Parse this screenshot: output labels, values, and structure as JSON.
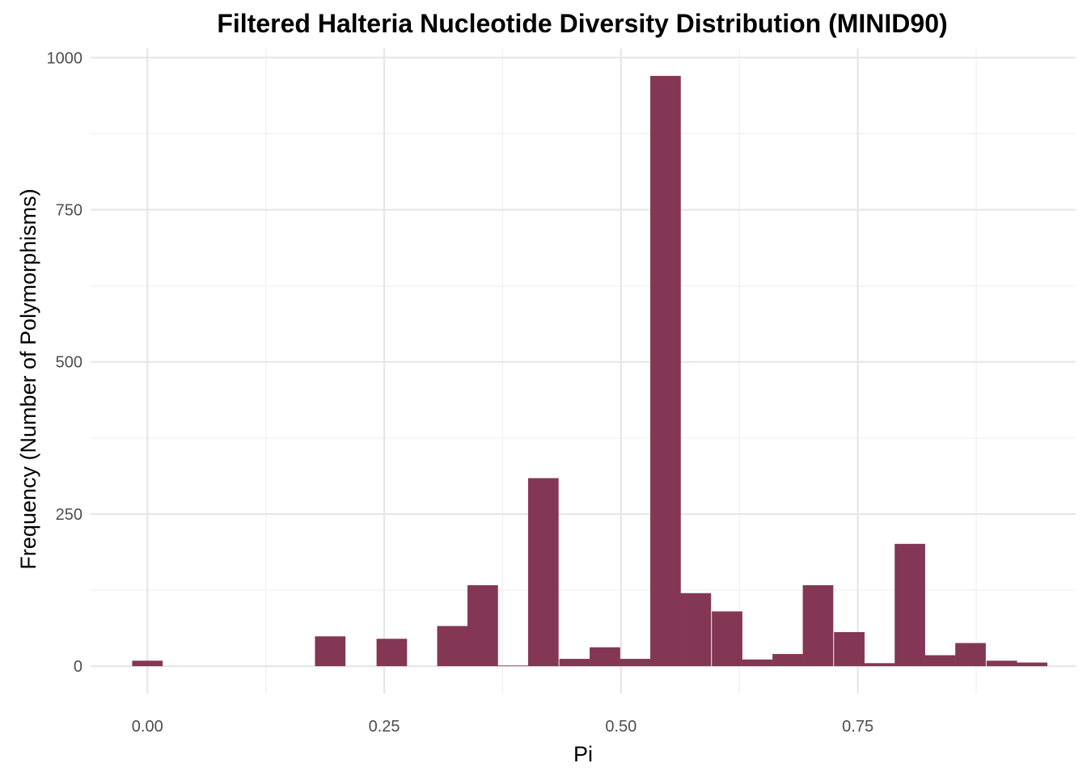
{
  "chart_data": {
    "type": "bar",
    "title": "Filtered Halteria Nucleotide Diversity Distribution (MINID90)",
    "xlabel": "Pi",
    "ylabel": "Frequency (Number of Polymorphisms)",
    "xlim": [
      -0.06,
      0.98
    ],
    "ylim": [
      -45,
      1015
    ],
    "x_ticks": [
      0.0,
      0.25,
      0.5,
      0.75
    ],
    "x_tick_labels": [
      "0.00",
      "0.25",
      "0.50",
      "0.75"
    ],
    "y_ticks": [
      0,
      250,
      500,
      750,
      1000
    ],
    "y_tick_labels": [
      "0",
      "250",
      "500",
      "750",
      "1000"
    ],
    "grid": true,
    "bar_color": "#833754",
    "bin_width": 0.0322,
    "bins": [
      {
        "x": 0.0,
        "count": 9
      },
      {
        "x": 0.193,
        "count": 49
      },
      {
        "x": 0.258,
        "count": 45
      },
      {
        "x": 0.322,
        "count": 66
      },
      {
        "x": 0.354,
        "count": 133
      },
      {
        "x": 0.386,
        "count": 1
      },
      {
        "x": 0.418,
        "count": 309
      },
      {
        "x": 0.451,
        "count": 12
      },
      {
        "x": 0.483,
        "count": 31
      },
      {
        "x": 0.515,
        "count": 12
      },
      {
        "x": 0.547,
        "count": 970
      },
      {
        "x": 0.579,
        "count": 120
      },
      {
        "x": 0.612,
        "count": 90
      },
      {
        "x": 0.644,
        "count": 11
      },
      {
        "x": 0.676,
        "count": 20
      },
      {
        "x": 0.708,
        "count": 133
      },
      {
        "x": 0.741,
        "count": 56
      },
      {
        "x": 0.773,
        "count": 5
      },
      {
        "x": 0.805,
        "count": 201
      },
      {
        "x": 0.837,
        "count": 18
      },
      {
        "x": 0.869,
        "count": 38
      },
      {
        "x": 0.902,
        "count": 9
      },
      {
        "x": 0.934,
        "count": 6
      }
    ]
  }
}
